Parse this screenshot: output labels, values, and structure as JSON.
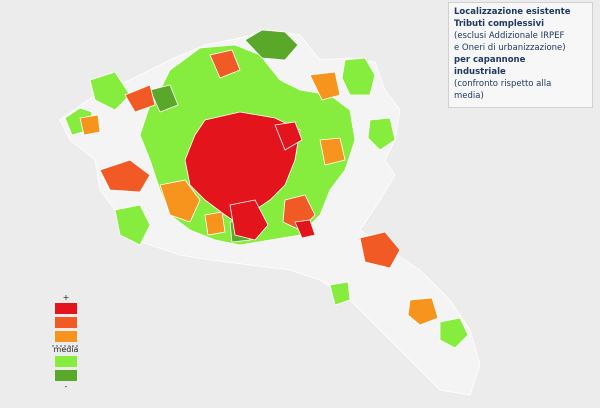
{
  "title": {
    "lines": [
      "Localizzazione esistente",
      "Tributi complessivi",
      "(esclusi Addizionale IRPEF",
      "e Oneri di urbanizzazione)",
      "per capannone",
      "industriale",
      "(confronto rispetto alla",
      "media)"
    ]
  },
  "legend": {
    "top_label": "+",
    "middle_label": "media",
    "bottom_label": "-",
    "colors": [
      "#e3141b",
      "#f15a24",
      "#f7941d",
      "#86ec3e",
      "#5aa82a"
    ]
  }
}
